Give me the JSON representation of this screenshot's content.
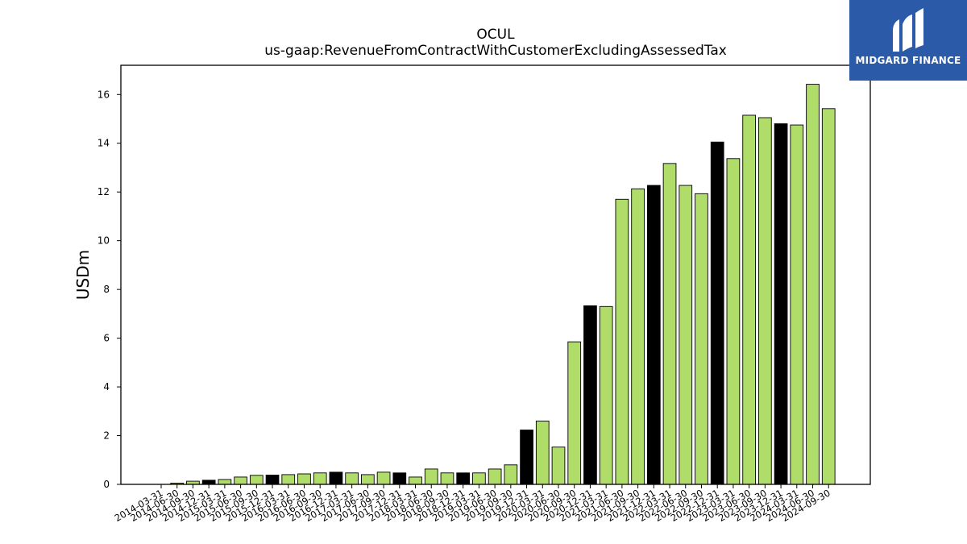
{
  "chart_data": {
    "type": "bar",
    "title": "OCUL",
    "subtitle": "us-gaap:RevenueFromContractWithCustomerExcludingAssessedTax",
    "xlabel": "",
    "ylabel": "USDm",
    "ylim": [
      0,
      17.2
    ],
    "yticks": [
      0,
      2,
      4,
      6,
      8,
      10,
      12,
      14,
      16
    ],
    "grid": false,
    "categories": [
      "2014-03-31",
      "2014-06-30",
      "2014-09-30",
      "2014-12-31",
      "2015-03-31",
      "2015-06-30",
      "2015-09-30",
      "2015-12-31",
      "2016-03-31",
      "2016-06-30",
      "2016-09-30",
      "2016-12-31",
      "2017-03-31",
      "2017-06-30",
      "2017-09-30",
      "2017-12-31",
      "2018-03-31",
      "2018-06-30",
      "2018-09-30",
      "2018-12-31",
      "2019-03-31",
      "2019-06-30",
      "2019-09-30",
      "2019-12-31",
      "2020-03-31",
      "2020-06-30",
      "2020-09-30",
      "2020-12-31",
      "2021-03-31",
      "2021-06-30",
      "2021-09-30",
      "2021-12-31",
      "2022-03-31",
      "2022-06-30",
      "2022-09-30",
      "2022-12-31",
      "2023-03-31",
      "2023-06-30",
      "2023-09-30",
      "2023-12-31",
      "2024-03-31",
      "2024-06-30",
      "2024-09-30"
    ],
    "values": [
      0.0,
      0.05,
      0.13,
      0.17,
      0.2,
      0.3,
      0.37,
      0.38,
      0.4,
      0.43,
      0.47,
      0.5,
      0.47,
      0.4,
      0.5,
      0.47,
      0.3,
      0.63,
      0.47,
      0.47,
      0.47,
      0.63,
      0.8,
      2.23,
      2.6,
      1.53,
      5.85,
      7.33,
      7.3,
      11.7,
      12.13,
      12.27,
      13.17,
      12.27,
      11.93,
      14.05,
      13.37,
      15.15,
      15.05,
      14.8,
      14.75,
      16.42,
      15.42
    ],
    "bar_colors": [
      "#b0dc6a",
      "#b0dc6a",
      "#b0dc6a",
      "#000000",
      "#b0dc6a",
      "#b0dc6a",
      "#b0dc6a",
      "#000000",
      "#b0dc6a",
      "#b0dc6a",
      "#b0dc6a",
      "#000000",
      "#b0dc6a",
      "#b0dc6a",
      "#b0dc6a",
      "#000000",
      "#b0dc6a",
      "#b0dc6a",
      "#b0dc6a",
      "#000000",
      "#b0dc6a",
      "#b0dc6a",
      "#b0dc6a",
      "#000000",
      "#b0dc6a",
      "#b0dc6a",
      "#b0dc6a",
      "#000000",
      "#b0dc6a",
      "#b0dc6a",
      "#b0dc6a",
      "#000000",
      "#b0dc6a",
      "#b0dc6a",
      "#b0dc6a",
      "#000000",
      "#b0dc6a",
      "#b0dc6a",
      "#b0dc6a",
      "#000000",
      "#b0dc6a",
      "#b0dc6a",
      "#b0dc6a"
    ]
  },
  "colors": {
    "bar_green": "#b0dc6a",
    "bar_black": "#000000",
    "logo_bg": "#2b5aa8"
  },
  "logo": {
    "text": "MIDGARD FINANCE",
    "icon": "midgard-logo-icon"
  }
}
